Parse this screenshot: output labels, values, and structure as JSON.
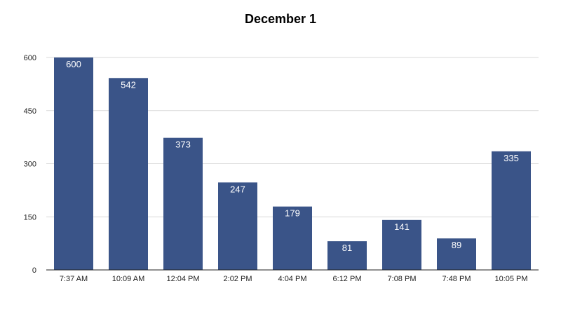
{
  "chart_data": {
    "type": "bar",
    "title": "December 1",
    "xlabel": "",
    "ylabel": "",
    "categories": [
      "7:37 AM",
      "10:09 AM",
      "12:04 PM",
      "2:02 PM",
      "4:04 PM",
      "6:12 PM",
      "7:08 PM",
      "7:48 PM",
      "10:05 PM"
    ],
    "values": [
      600,
      542,
      373,
      247,
      179,
      81,
      141,
      89,
      335
    ],
    "ylim": [
      0,
      600
    ],
    "yticks": [
      0,
      150,
      300,
      450,
      600
    ],
    "grid": true,
    "legend": "none",
    "bar_color": "#3a5488",
    "data_labels": true
  }
}
